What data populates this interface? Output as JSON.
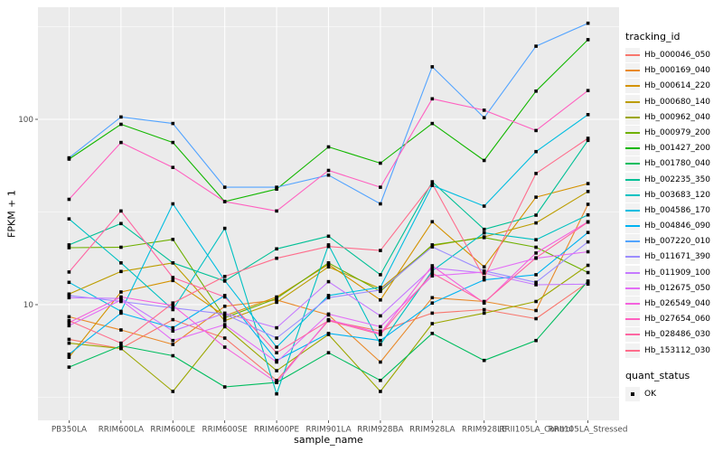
{
  "chart_data": {
    "type": "line",
    "title": "",
    "xlabel": "sample_name",
    "ylabel": "FPKM + 1",
    "y_scale": "log10",
    "ylim": [
      2.4,
      420
    ],
    "grid": true,
    "legend_position": "right",
    "point_shape": "filled-square",
    "y_major_ticks": [
      {
        "label": "100",
        "value": 100
      },
      {
        "label": "10",
        "value": 10
      }
    ],
    "y_minor_values": [
      3.1623,
      31.6228,
      316.228
    ],
    "categories": [
      "PB350LA",
      "RRIM600LA",
      "RRIM600LE",
      "RRIM600SE",
      "RRIM600PE",
      "RRIM901LA",
      "RRIM928BA",
      "RRIM928LA",
      "RRIM928LE",
      "RRII105LA_Control",
      "RRII105LA_Stressed"
    ],
    "legend_title": "tracking_id",
    "quant_legend": {
      "title": "quant_status",
      "items": [
        "OK"
      ]
    },
    "series": [
      {
        "name": "Hb_000046_050",
        "color": "#F8766D",
        "values": [
          6.5,
          5.8,
          8.3,
          6.6,
          3.9,
          8.2,
          7.2,
          9.0,
          9.4,
          8.4,
          13.2
        ]
      },
      {
        "name": "Hb_000169_040",
        "color": "#E98A2B",
        "values": [
          8.6,
          7.3,
          6.1,
          9.8,
          10.6,
          8.8,
          4.9,
          10.9,
          10.4,
          9.3,
          34.8
        ]
      },
      {
        "name": "Hb_000614_220",
        "color": "#D49200",
        "values": [
          5.2,
          11.7,
          13.5,
          8.7,
          11.0,
          16.5,
          10.6,
          28.0,
          16.0,
          38.0,
          45.0
        ]
      },
      {
        "name": "Hb_000680_140",
        "color": "#BC9D00",
        "values": [
          11.4,
          15.1,
          16.8,
          8.2,
          10.3,
          16.0,
          12.2,
          20.8,
          23.2,
          27.6,
          40.8
        ]
      },
      {
        "name": "Hb_000962_040",
        "color": "#9CA700",
        "values": [
          6.2,
          5.8,
          3.4,
          7.6,
          4.4,
          6.9,
          3.4,
          7.9,
          9.0,
          10.4,
          16.3
        ]
      },
      {
        "name": "Hb_000979_200",
        "color": "#6FB000",
        "values": [
          20.3,
          20.4,
          22.5,
          8.5,
          10.8,
          16.8,
          11.8,
          21.0,
          23.0,
          20.4,
          14.9
        ]
      },
      {
        "name": "Hb_001427_200",
        "color": "#13B700",
        "values": [
          61,
          94,
          75,
          36,
          42,
          71,
          58,
          95,
          60,
          142,
          269
        ]
      },
      {
        "name": "Hb_001780_040",
        "color": "#00BD5F",
        "values": [
          4.6,
          6.0,
          5.3,
          3.6,
          3.8,
          5.5,
          3.9,
          7.0,
          5.0,
          6.4,
          13.4
        ]
      },
      {
        "name": "Hb_002235_350",
        "color": "#00C096",
        "values": [
          21.0,
          27.4,
          16.8,
          13.4,
          20.0,
          23.4,
          14.5,
          46.0,
          25.5,
          30.4,
          77.0
        ]
      },
      {
        "name": "Hb_003683_120",
        "color": "#00C1C2",
        "values": [
          29.0,
          16.8,
          9.4,
          25.8,
          3.3,
          21.0,
          6.1,
          15.2,
          24.4,
          22.4,
          30.5
        ]
      },
      {
        "name": "Hb_004586_170",
        "color": "#00BDE0",
        "values": [
          13.2,
          9.2,
          35.0,
          13.5,
          5.9,
          11.2,
          12.4,
          44.0,
          34.0,
          67.0,
          106.0
        ]
      },
      {
        "name": "Hb_004846_090",
        "color": "#00B3F2",
        "values": [
          5.4,
          9.0,
          7.5,
          11.2,
          5.0,
          7.0,
          6.4,
          10.2,
          13.6,
          14.5,
          24.5
        ]
      },
      {
        "name": "Hb_007220_010",
        "color": "#53A4FF",
        "values": [
          62,
          103,
          95,
          43,
          43,
          50,
          35,
          192,
          102,
          248,
          330
        ]
      },
      {
        "name": "Hb_011671_390",
        "color": "#9C8DFF",
        "values": [
          11.2,
          10.4,
          9.6,
          8.9,
          6.6,
          10.9,
          12.0,
          20.5,
          15.2,
          13.2,
          21.8
        ]
      },
      {
        "name": "Hb_011909_100",
        "color": "#C579FF",
        "values": [
          10.9,
          10.8,
          7.2,
          9.0,
          7.5,
          13.3,
          8.7,
          15.8,
          14.8,
          12.8,
          12.9
        ]
      },
      {
        "name": "Hb_012675_050",
        "color": "#E36EF6",
        "values": [
          7.7,
          10.6,
          6.4,
          7.8,
          4.9,
          8.9,
          7.6,
          14.3,
          15.0,
          17.8,
          19.3
        ]
      },
      {
        "name": "Hb_026549_040",
        "color": "#F562DE",
        "values": [
          8.0,
          11.0,
          9.9,
          5.9,
          3.8,
          8.3,
          7.0,
          16.2,
          10.2,
          19.0,
          28.0
        ]
      },
      {
        "name": "Hb_027654_060",
        "color": "#FF61C0",
        "values": [
          37,
          75,
          55,
          36,
          32,
          53,
          43,
          129,
          112,
          87,
          143
        ]
      },
      {
        "name": "Hb_028486_030",
        "color": "#FF66A2",
        "values": [
          15.0,
          32.0,
          14.0,
          11.0,
          5.5,
          8.2,
          6.9,
          14.8,
          10.3,
          17.9,
          27.9
        ]
      },
      {
        "name": "Hb_153112_030",
        "color": "#FF6D8C",
        "values": [
          8.2,
          6.2,
          10.2,
          14.2,
          17.8,
          20.6,
          19.6,
          45.0,
          14.0,
          51.0,
          79.0
        ]
      }
    ],
    "style": {
      "panel_bg": "#EBEBEB",
      "grid_color": "#FFFFFF",
      "axis_text_color": "#4D4D4D",
      "tick_color": "#333333",
      "point_color": "#000000",
      "key_bg": "#F2F2F2"
    }
  }
}
